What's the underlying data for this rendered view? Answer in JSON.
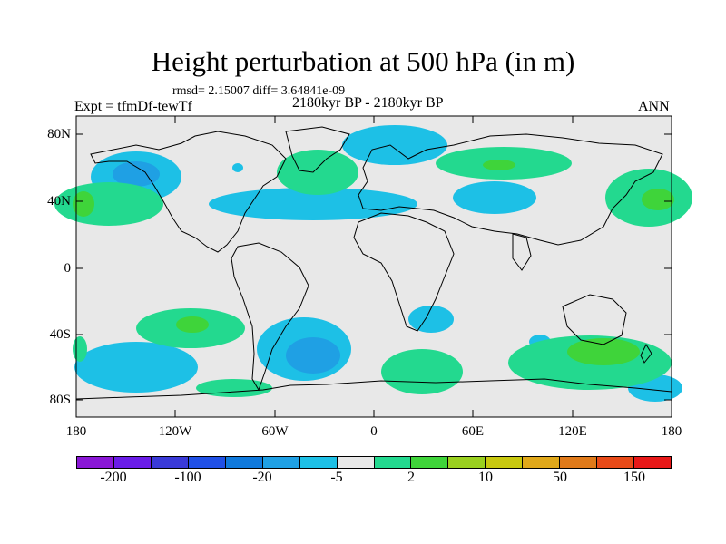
{
  "header": {
    "title": "Height perturbation at 500 hPa (in m)",
    "stats": "rmsd= 2.15007 diff= 3.64841e-09",
    "expt": "Expt = tfmDf-tewTf",
    "period": "2180kyr BP - 2180kyr BP",
    "season": "ANN"
  },
  "axes": {
    "y_ticks": [
      "80N",
      "40N",
      "0",
      "40S",
      "80S"
    ],
    "x_ticks": [
      "180",
      "120W",
      "60W",
      "0",
      "60E",
      "120E",
      "180"
    ]
  },
  "colorbar": {
    "colors": [
      "#8a17d6",
      "#6a1ce8",
      "#3a3ad8",
      "#2050e6",
      "#0f79dc",
      "#1fa0e4",
      "#1dc0e6",
      "#e8e8e8",
      "#23d98f",
      "#3fd43a",
      "#9ad01f",
      "#c8c80f",
      "#e0a81a",
      "#e07a1a",
      "#e84a18",
      "#e81818"
    ],
    "labels": [
      "-200",
      "-100",
      "-20",
      "-5",
      "2",
      "10",
      "50",
      "150"
    ]
  },
  "map_fill": {
    "background": "#e8e8e8",
    "light_blue": "#1dc0e6",
    "mid_blue": "#1fa0e4",
    "green": "#23d98f",
    "lime": "#3fd43a"
  }
}
